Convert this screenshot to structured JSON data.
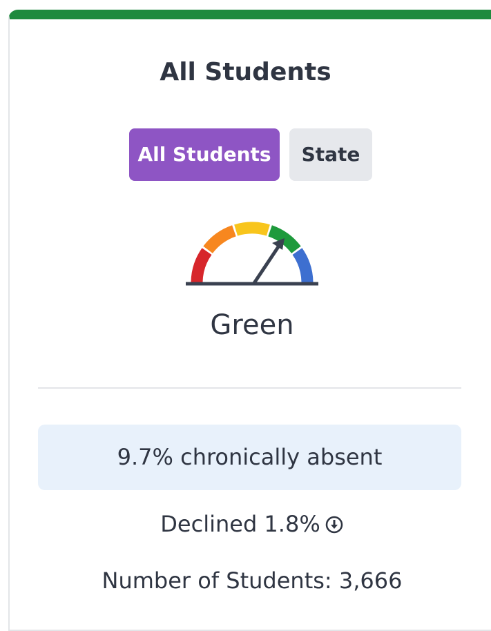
{
  "header": {
    "title": "All Students"
  },
  "tabs": [
    {
      "label": "All Students"
    },
    {
      "label": "State"
    }
  ],
  "gauge": {
    "label": "Green"
  },
  "stat": "9.7% chronically absent",
  "change": "Declined 1.8%",
  "count": "Number of Students: 3,666"
}
